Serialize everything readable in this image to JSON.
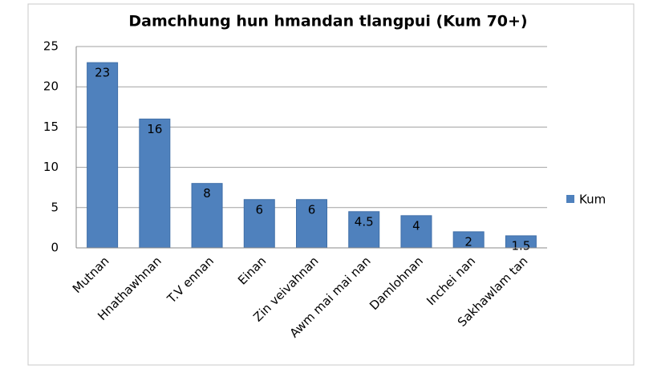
{
  "chart_data": {
    "type": "bar",
    "title": "Damchhung hun hmandan tlangpui (Kum 70+)",
    "categories": [
      "Mutnan",
      "Hnathawhnan",
      "T.V ennan",
      "Einan",
      "Zin veivahnan",
      "Awm mai mai nan",
      "Damlohnan",
      "Inchei nan",
      "Sakhawlam tan"
    ],
    "series": [
      {
        "name": "Kum",
        "color": "#4f81bd",
        "values": [
          23,
          16,
          8,
          6,
          6,
          4.5,
          4,
          2,
          1.5
        ]
      }
    ],
    "ylim": [
      0,
      25
    ],
    "yticks": [
      0,
      5,
      10,
      15,
      20,
      25
    ],
    "grid": true,
    "legend": "right",
    "data_labels": true
  }
}
